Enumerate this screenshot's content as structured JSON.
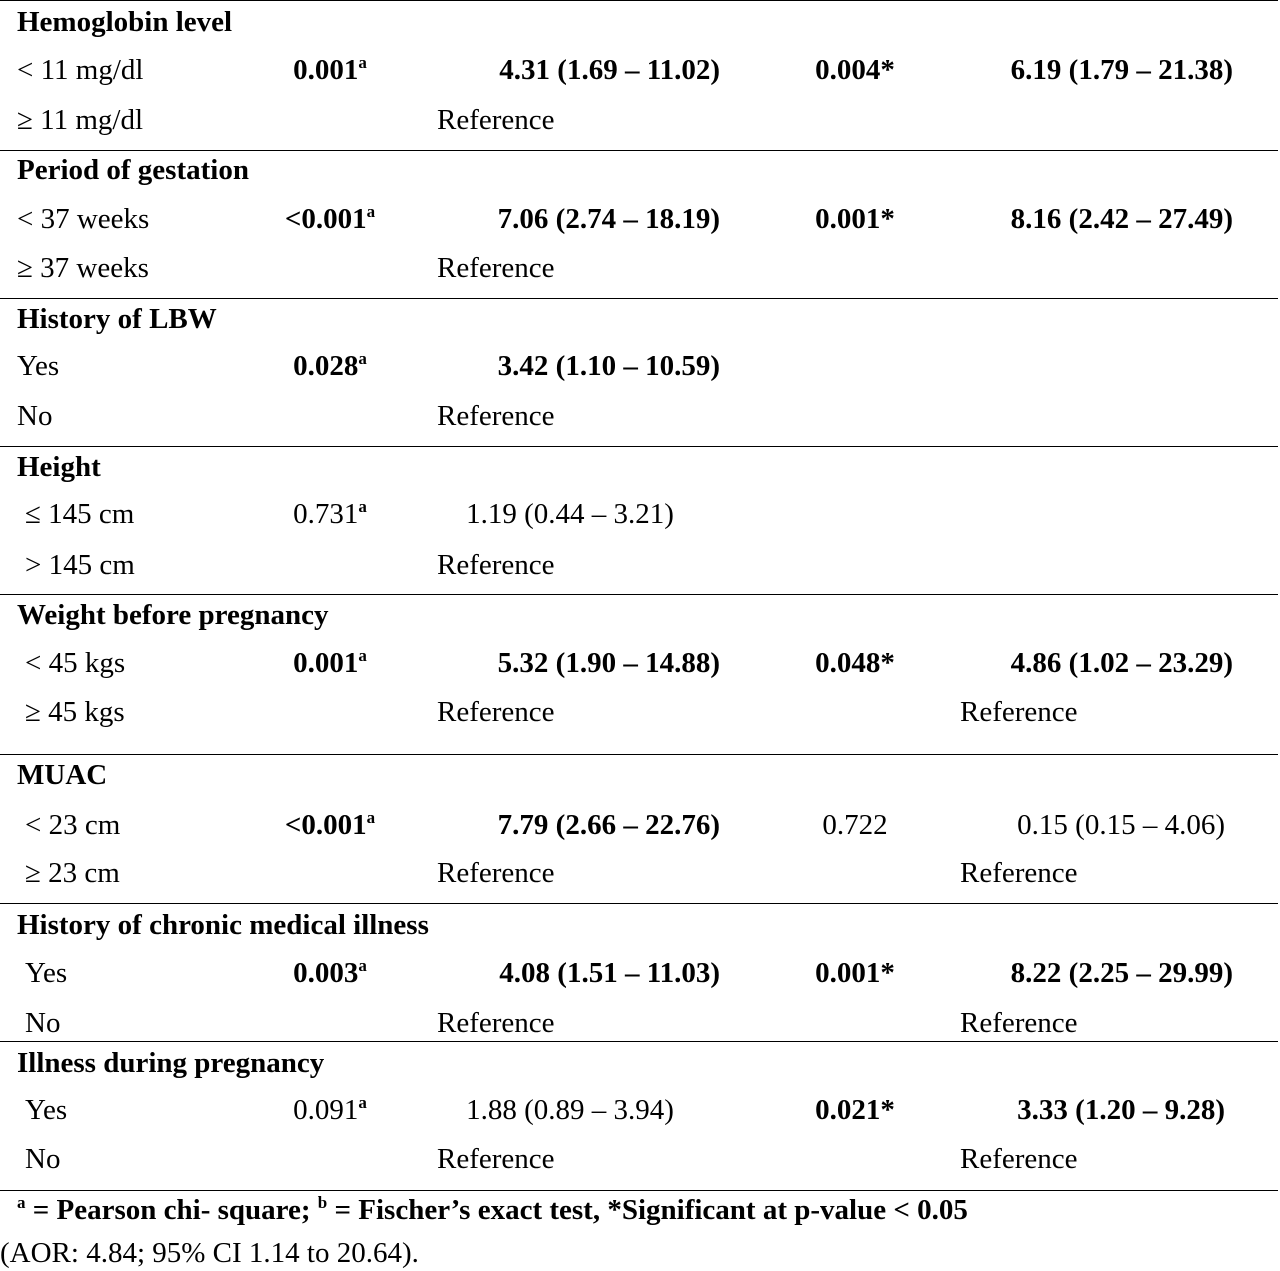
{
  "sections": [
    {
      "title": "Hemoglobin level",
      "rows": [
        {
          "label": "< 11 mg/dl",
          "p1": "0.001",
          "p1_sup": "a",
          "or1": "4.31 (1.69 – 11.02)",
          "p2": "0.004*",
          "aor": "6.19 (1.79 – 21.38)"
        },
        {
          "label": "≥ 11 mg/dl",
          "ref1": "Reference"
        }
      ]
    },
    {
      "title": "Period of gestation",
      "rows": [
        {
          "label": "< 37 weeks",
          "p1": "<0.001",
          "p1_sup": "a",
          "or1": "7.06 (2.74 – 18.19)",
          "p2": "0.001*",
          "aor": "8.16 (2.42 – 27.49)"
        },
        {
          "label": "≥ 37 weeks",
          "ref1": "Reference"
        }
      ]
    },
    {
      "title": "History of LBW",
      "rows": [
        {
          "label": "Yes",
          "p1": "0.028",
          "p1_sup": "a",
          "or1": "3.42 (1.10 – 10.59)"
        },
        {
          "label": "No",
          "ref1": "Reference"
        }
      ]
    },
    {
      "title": "Height",
      "rows": [
        {
          "label": "≤ 145 cm",
          "p1": "0.731",
          "p1_sup": "a",
          "or1": "1.19 (0.44 – 3.21)"
        },
        {
          "label": "> 145 cm",
          "ref1": "Reference"
        }
      ]
    },
    {
      "title": "Weight before pregnancy",
      "rows": [
        {
          "label": "< 45 kgs",
          "p1": "0.001",
          "p1_sup": "a",
          "or1": "5.32 (1.90 – 14.88)",
          "p2": "0.048*",
          "aor": "4.86 (1.02 – 23.29)"
        },
        {
          "label": "≥ 45 kgs",
          "ref1": "Reference",
          "ref2": "Reference"
        }
      ]
    },
    {
      "title": "MUAC",
      "rows": [
        {
          "label": "< 23 cm",
          "p1": "<0.001",
          "p1_sup": "a",
          "or1": "7.79 (2.66 – 22.76)",
          "p2": "0.722",
          "aor": "0.15 (0.15 – 4.06)"
        },
        {
          "label": "≥ 23 cm",
          "ref1": "Reference",
          "ref2": "Reference"
        }
      ]
    },
    {
      "title": "History of chronic medical illness",
      "rows": [
        {
          "label": "Yes",
          "p1": "0.003",
          "p1_sup": "a",
          "or1": "4.08 (1.51 – 11.03)",
          "p2": "0.001*",
          "aor": "8.22 (2.25 – 29.99)"
        },
        {
          "label": "No",
          "ref1": "Reference",
          "ref2": "Reference"
        }
      ]
    },
    {
      "title": "Illness during pregnancy",
      "rows": [
        {
          "label": "Yes",
          "p1": "0.091",
          "p1_sup": "a",
          "or1": "1.88 (0.89 – 3.94)",
          "p2": "0.021*",
          "aor": "3.33 (1.20 – 9.28)"
        },
        {
          "label": "No",
          "ref1": "Reference",
          "ref2": "Reference"
        }
      ]
    }
  ],
  "footnote": {
    "sup_a": "a",
    "text_a": " = Pearson chi- square; ",
    "sup_b": "b",
    "text_b": " = Fischer’s exact test, *Significant at p-value < 0.05",
    "line2": "(AOR: 4.84; 95% CI 1.14 to 20.64)."
  }
}
